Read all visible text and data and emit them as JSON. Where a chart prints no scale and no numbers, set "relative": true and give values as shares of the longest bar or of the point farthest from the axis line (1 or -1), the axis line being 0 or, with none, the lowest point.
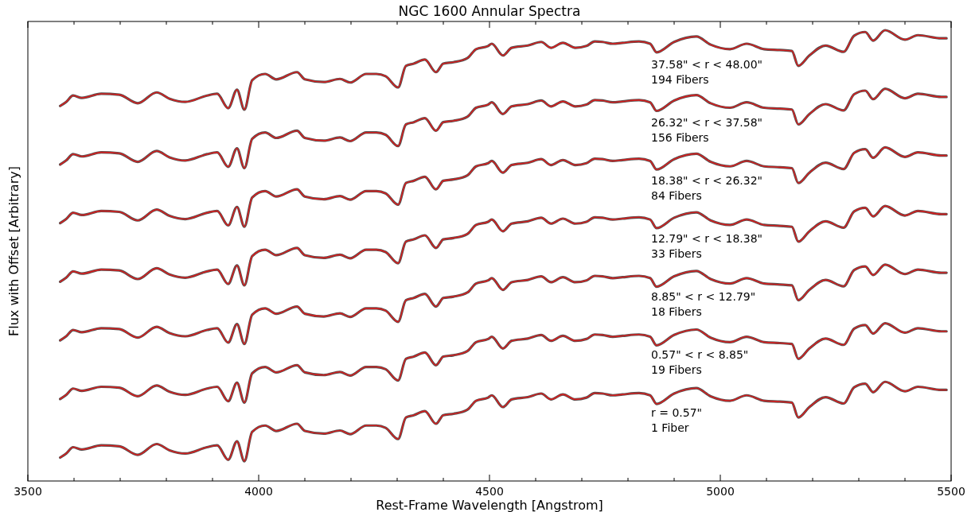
{
  "chart_data": {
    "type": "line",
    "title": "NGC 1600 Annular Spectra",
    "xlabel": "Rest-Frame Wavelength [Angstrom]",
    "ylabel": "Flux with Offset [Arbitrary]",
    "relative": true,
    "xlim": [
      3500,
      5500
    ],
    "xticks": [
      3500,
      {
        "value": 3600,
        "label": null
      },
      {
        "value": 3700,
        "label": null
      },
      {
        "value": 3800,
        "label": null
      },
      {
        "value": 3900,
        "label": null
      },
      4000,
      {
        "value": 4100,
        "label": null
      },
      {
        "value": 4200,
        "label": null
      },
      {
        "value": 4300,
        "label": null
      },
      {
        "value": 4400,
        "label": null
      },
      4500,
      {
        "value": 4600,
        "label": null
      },
      {
        "value": 4700,
        "label": null
      },
      {
        "value": 4800,
        "label": null
      },
      {
        "value": 4900,
        "label": null
      },
      5000,
      {
        "value": 5100,
        "label": null
      },
      {
        "value": 5200,
        "label": null
      },
      {
        "value": 5300,
        "label": null
      },
      {
        "value": 5400,
        "label": null
      },
      5500
    ],
    "x": [
      3570,
      3583,
      3598,
      3617,
      3659,
      3698,
      3738,
      3779,
      3807,
      3841,
      3888,
      3910,
      3934,
      3953,
      3969,
      3986,
      4014,
      4038,
      4083,
      4100,
      4141,
      4176,
      4198,
      4233,
      4255,
      4275,
      4302,
      4319,
      4336,
      4360,
      4384,
      4400,
      4422,
      4452,
      4471,
      4497,
      4505,
      4529,
      4548,
      4583,
      4612,
      4633,
      4659,
      4686,
      4710,
      4728,
      4745,
      4767,
      4788,
      4824,
      4848,
      4862,
      4900,
      4948,
      4979,
      5021,
      5057,
      5095,
      5129,
      5155,
      5169,
      5193,
      5228,
      5267,
      5290,
      5314,
      5331,
      5357,
      5400,
      5428,
      5479,
      5490
    ],
    "series": [
      {
        "type": "line",
        "color": "#505050",
        "values": [
          0.832,
          0.841,
          0.855,
          0.85,
          0.859,
          0.857,
          0.838,
          0.862,
          0.848,
          0.841,
          0.855,
          0.859,
          0.827,
          0.868,
          0.824,
          0.889,
          0.903,
          0.891,
          0.907,
          0.891,
          0.885,
          0.892,
          0.884,
          0.903,
          0.903,
          0.898,
          0.873,
          0.921,
          0.926,
          0.935,
          0.907,
          0.926,
          0.929,
          0.938,
          0.958,
          0.965,
          0.97,
          0.944,
          0.961,
          0.966,
          0.974,
          0.961,
          0.972,
          0.961,
          0.965,
          0.975,
          0.974,
          0.97,
          0.972,
          0.975,
          0.97,
          0.951,
          0.974,
          0.986,
          0.968,
          0.958,
          0.97,
          0.958,
          0.956,
          0.954,
          0.921,
          0.944,
          0.966,
          0.952,
          0.988,
          0.996,
          0.977,
          1.0,
          0.979,
          0.989,
          0.982,
          0.982
        ]
      },
      {
        "type": "line",
        "color": "#d62020",
        "values": [
          0.832,
          0.841,
          0.855,
          0.85,
          0.859,
          0.857,
          0.838,
          0.862,
          0.848,
          0.841,
          0.855,
          0.859,
          0.827,
          0.868,
          0.824,
          0.889,
          0.903,
          0.891,
          0.907,
          0.891,
          0.885,
          0.892,
          0.884,
          0.903,
          0.903,
          0.898,
          0.873,
          0.921,
          0.926,
          0.935,
          0.907,
          0.926,
          0.929,
          0.938,
          0.958,
          0.965,
          0.97,
          0.944,
          0.961,
          0.966,
          0.974,
          0.961,
          0.972,
          0.961,
          0.965,
          0.975,
          0.974,
          0.97,
          0.972,
          0.975,
          0.97,
          0.951,
          0.974,
          0.986,
          0.968,
          0.958,
          0.97,
          0.958,
          0.956,
          0.954,
          0.921,
          0.944,
          0.966,
          0.952,
          0.988,
          0.996,
          0.977,
          1.0,
          0.979,
          0.989,
          0.982,
          0.982
        ]
      },
      {
        "type": "line",
        "color": "#505050",
        "values": [
          0.702,
          0.711,
          0.725,
          0.72,
          0.729,
          0.727,
          0.708,
          0.732,
          0.718,
          0.711,
          0.725,
          0.729,
          0.697,
          0.738,
          0.694,
          0.759,
          0.773,
          0.761,
          0.777,
          0.761,
          0.755,
          0.762,
          0.754,
          0.773,
          0.773,
          0.768,
          0.743,
          0.791,
          0.796,
          0.805,
          0.777,
          0.796,
          0.799,
          0.808,
          0.828,
          0.835,
          0.84,
          0.814,
          0.831,
          0.836,
          0.844,
          0.831,
          0.842,
          0.831,
          0.835,
          0.845,
          0.844,
          0.84,
          0.842,
          0.845,
          0.84,
          0.821,
          0.844,
          0.856,
          0.838,
          0.828,
          0.84,
          0.828,
          0.826,
          0.824,
          0.791,
          0.814,
          0.836,
          0.822,
          0.858,
          0.866,
          0.847,
          0.87,
          0.849,
          0.859,
          0.852,
          0.852
        ]
      },
      {
        "type": "line",
        "color": "#d62020",
        "values": [
          0.702,
          0.711,
          0.725,
          0.72,
          0.729,
          0.727,
          0.708,
          0.732,
          0.718,
          0.711,
          0.725,
          0.729,
          0.697,
          0.738,
          0.694,
          0.759,
          0.773,
          0.761,
          0.777,
          0.761,
          0.755,
          0.762,
          0.754,
          0.773,
          0.773,
          0.768,
          0.743,
          0.791,
          0.796,
          0.805,
          0.777,
          0.796,
          0.799,
          0.808,
          0.828,
          0.835,
          0.84,
          0.814,
          0.831,
          0.836,
          0.844,
          0.831,
          0.842,
          0.831,
          0.835,
          0.845,
          0.844,
          0.84,
          0.842,
          0.845,
          0.84,
          0.821,
          0.844,
          0.856,
          0.838,
          0.828,
          0.84,
          0.828,
          0.826,
          0.824,
          0.791,
          0.814,
          0.836,
          0.822,
          0.858,
          0.866,
          0.847,
          0.87,
          0.849,
          0.859,
          0.852,
          0.852
        ]
      },
      {
        "type": "line",
        "color": "#505050",
        "values": [
          0.572,
          0.581,
          0.595,
          0.59,
          0.599,
          0.597,
          0.578,
          0.602,
          0.588,
          0.581,
          0.595,
          0.599,
          0.567,
          0.608,
          0.564,
          0.629,
          0.643,
          0.631,
          0.647,
          0.631,
          0.625,
          0.632,
          0.624,
          0.643,
          0.643,
          0.638,
          0.613,
          0.661,
          0.666,
          0.675,
          0.647,
          0.666,
          0.669,
          0.678,
          0.698,
          0.705,
          0.71,
          0.684,
          0.701,
          0.706,
          0.714,
          0.701,
          0.712,
          0.701,
          0.705,
          0.715,
          0.714,
          0.71,
          0.712,
          0.715,
          0.71,
          0.691,
          0.714,
          0.726,
          0.708,
          0.698,
          0.71,
          0.698,
          0.696,
          0.694,
          0.661,
          0.684,
          0.706,
          0.692,
          0.728,
          0.736,
          0.717,
          0.74,
          0.719,
          0.729,
          0.722,
          0.722
        ]
      },
      {
        "type": "line",
        "color": "#d62020",
        "values": [
          0.572,
          0.581,
          0.595,
          0.59,
          0.599,
          0.597,
          0.578,
          0.602,
          0.588,
          0.581,
          0.595,
          0.599,
          0.567,
          0.608,
          0.564,
          0.629,
          0.643,
          0.631,
          0.647,
          0.631,
          0.625,
          0.632,
          0.624,
          0.643,
          0.643,
          0.638,
          0.613,
          0.661,
          0.666,
          0.675,
          0.647,
          0.666,
          0.669,
          0.678,
          0.698,
          0.705,
          0.71,
          0.684,
          0.701,
          0.706,
          0.714,
          0.701,
          0.712,
          0.701,
          0.705,
          0.715,
          0.714,
          0.71,
          0.712,
          0.715,
          0.71,
          0.691,
          0.714,
          0.726,
          0.708,
          0.698,
          0.71,
          0.698,
          0.696,
          0.694,
          0.661,
          0.684,
          0.706,
          0.692,
          0.728,
          0.736,
          0.717,
          0.74,
          0.719,
          0.729,
          0.722,
          0.722
        ]
      },
      {
        "type": "line",
        "color": "#505050",
        "values": [
          0.442,
          0.451,
          0.465,
          0.46,
          0.469,
          0.467,
          0.448,
          0.472,
          0.458,
          0.451,
          0.465,
          0.469,
          0.437,
          0.478,
          0.434,
          0.499,
          0.513,
          0.501,
          0.517,
          0.501,
          0.495,
          0.502,
          0.494,
          0.513,
          0.513,
          0.508,
          0.483,
          0.531,
          0.536,
          0.545,
          0.517,
          0.536,
          0.539,
          0.548,
          0.568,
          0.575,
          0.58,
          0.554,
          0.571,
          0.576,
          0.584,
          0.571,
          0.582,
          0.571,
          0.575,
          0.585,
          0.584,
          0.58,
          0.582,
          0.585,
          0.58,
          0.561,
          0.584,
          0.596,
          0.578,
          0.568,
          0.58,
          0.568,
          0.566,
          0.564,
          0.531,
          0.554,
          0.576,
          0.562,
          0.598,
          0.606,
          0.587,
          0.61,
          0.589,
          0.599,
          0.592,
          0.592
        ]
      },
      {
        "type": "line",
        "color": "#d62020",
        "values": [
          0.442,
          0.451,
          0.465,
          0.46,
          0.469,
          0.467,
          0.448,
          0.472,
          0.458,
          0.451,
          0.465,
          0.469,
          0.437,
          0.478,
          0.434,
          0.499,
          0.513,
          0.501,
          0.517,
          0.501,
          0.495,
          0.502,
          0.494,
          0.513,
          0.513,
          0.508,
          0.483,
          0.531,
          0.536,
          0.545,
          0.517,
          0.536,
          0.539,
          0.548,
          0.568,
          0.575,
          0.58,
          0.554,
          0.571,
          0.576,
          0.584,
          0.571,
          0.582,
          0.571,
          0.575,
          0.585,
          0.584,
          0.58,
          0.582,
          0.585,
          0.58,
          0.561,
          0.584,
          0.596,
          0.578,
          0.568,
          0.58,
          0.568,
          0.566,
          0.564,
          0.531,
          0.554,
          0.576,
          0.562,
          0.598,
          0.606,
          0.587,
          0.61,
          0.589,
          0.599,
          0.592,
          0.592
        ]
      },
      {
        "type": "line",
        "color": "#505050",
        "values": [
          0.312,
          0.321,
          0.335,
          0.33,
          0.339,
          0.337,
          0.318,
          0.342,
          0.328,
          0.321,
          0.335,
          0.339,
          0.307,
          0.348,
          0.304,
          0.369,
          0.383,
          0.371,
          0.387,
          0.371,
          0.365,
          0.372,
          0.364,
          0.383,
          0.383,
          0.378,
          0.353,
          0.401,
          0.406,
          0.415,
          0.387,
          0.406,
          0.409,
          0.418,
          0.438,
          0.445,
          0.45,
          0.424,
          0.441,
          0.446,
          0.454,
          0.441,
          0.452,
          0.441,
          0.445,
          0.455,
          0.454,
          0.45,
          0.452,
          0.455,
          0.45,
          0.431,
          0.454,
          0.466,
          0.448,
          0.438,
          0.45,
          0.438,
          0.436,
          0.434,
          0.401,
          0.424,
          0.446,
          0.432,
          0.468,
          0.476,
          0.457,
          0.48,
          0.459,
          0.469,
          0.462,
          0.462
        ]
      },
      {
        "type": "line",
        "color": "#d62020",
        "values": [
          0.312,
          0.321,
          0.335,
          0.33,
          0.339,
          0.337,
          0.318,
          0.342,
          0.328,
          0.321,
          0.335,
          0.339,
          0.307,
          0.348,
          0.304,
          0.369,
          0.383,
          0.371,
          0.387,
          0.371,
          0.365,
          0.372,
          0.364,
          0.383,
          0.383,
          0.378,
          0.353,
          0.401,
          0.406,
          0.415,
          0.387,
          0.406,
          0.409,
          0.418,
          0.438,
          0.445,
          0.45,
          0.424,
          0.441,
          0.446,
          0.454,
          0.441,
          0.452,
          0.441,
          0.445,
          0.455,
          0.454,
          0.45,
          0.452,
          0.455,
          0.45,
          0.431,
          0.454,
          0.466,
          0.448,
          0.438,
          0.45,
          0.438,
          0.436,
          0.434,
          0.401,
          0.424,
          0.446,
          0.432,
          0.468,
          0.476,
          0.457,
          0.48,
          0.459,
          0.469,
          0.462,
          0.462
        ]
      },
      {
        "type": "line",
        "color": "#505050",
        "values": [
          0.182,
          0.191,
          0.205,
          0.2,
          0.209,
          0.207,
          0.188,
          0.212,
          0.198,
          0.191,
          0.205,
          0.209,
          0.177,
          0.218,
          0.174,
          0.239,
          0.253,
          0.241,
          0.257,
          0.241,
          0.235,
          0.242,
          0.234,
          0.253,
          0.253,
          0.248,
          0.223,
          0.271,
          0.276,
          0.285,
          0.257,
          0.276,
          0.279,
          0.288,
          0.308,
          0.315,
          0.32,
          0.294,
          0.311,
          0.316,
          0.324,
          0.311,
          0.322,
          0.311,
          0.315,
          0.325,
          0.324,
          0.32,
          0.322,
          0.325,
          0.32,
          0.301,
          0.324,
          0.336,
          0.318,
          0.308,
          0.32,
          0.308,
          0.306,
          0.304,
          0.271,
          0.294,
          0.316,
          0.302,
          0.338,
          0.346,
          0.327,
          0.35,
          0.329,
          0.339,
          0.332,
          0.332
        ]
      },
      {
        "type": "line",
        "color": "#d62020",
        "values": [
          0.182,
          0.191,
          0.205,
          0.2,
          0.209,
          0.207,
          0.188,
          0.212,
          0.198,
          0.191,
          0.205,
          0.209,
          0.177,
          0.218,
          0.174,
          0.239,
          0.253,
          0.241,
          0.257,
          0.241,
          0.235,
          0.242,
          0.234,
          0.253,
          0.253,
          0.248,
          0.223,
          0.271,
          0.276,
          0.285,
          0.257,
          0.276,
          0.279,
          0.288,
          0.308,
          0.315,
          0.32,
          0.294,
          0.311,
          0.316,
          0.324,
          0.311,
          0.322,
          0.311,
          0.315,
          0.325,
          0.324,
          0.32,
          0.322,
          0.325,
          0.32,
          0.301,
          0.324,
          0.336,
          0.318,
          0.308,
          0.32,
          0.308,
          0.306,
          0.304,
          0.271,
          0.294,
          0.316,
          0.302,
          0.338,
          0.346,
          0.327,
          0.35,
          0.329,
          0.339,
          0.332,
          0.332
        ]
      },
      {
        "type": "line",
        "color": "#505050",
        "values": [
          0.052,
          0.061,
          0.075,
          0.07,
          0.079,
          0.077,
          0.058,
          0.082,
          0.068,
          0.061,
          0.075,
          0.079,
          0.047,
          0.088,
          0.044,
          0.109,
          0.123,
          0.111,
          0.127,
          0.111,
          0.105,
          0.112,
          0.104,
          0.123,
          0.123,
          0.118,
          0.093,
          0.141,
          0.146,
          0.155,
          0.127,
          0.146,
          0.149,
          0.158,
          0.178,
          0.185,
          0.19,
          0.164,
          0.181,
          0.186,
          0.194,
          0.181,
          0.192,
          0.181,
          0.185,
          0.195,
          0.194,
          0.19,
          0.192,
          0.195,
          0.19,
          0.171,
          0.194,
          0.206,
          0.188,
          0.178,
          0.19,
          0.178,
          0.176,
          0.174,
          0.141,
          0.164,
          0.186,
          0.172,
          0.208,
          0.216,
          0.197,
          0.22,
          0.199,
          0.209,
          0.202,
          0.202
        ]
      },
      {
        "type": "line",
        "color": "#d62020",
        "values": [
          0.052,
          0.061,
          0.075,
          0.07,
          0.079,
          0.077,
          0.058,
          0.082,
          0.068,
          0.061,
          0.075,
          0.079,
          0.047,
          0.088,
          0.044,
          0.109,
          0.123,
          0.111,
          0.127,
          0.111,
          0.105,
          0.112,
          0.104,
          0.123,
          0.123,
          0.118,
          0.093,
          0.141,
          0.146,
          0.155,
          0.127,
          0.146,
          0.149,
          0.158,
          0.178,
          0.185,
          0.19,
          0.164,
          0.181,
          0.186,
          0.194,
          0.181,
          0.192,
          0.181,
          0.185,
          0.195,
          0.194,
          0.19,
          0.192,
          0.195,
          0.19,
          0.171,
          0.194,
          0.206,
          0.188,
          0.178,
          0.19,
          0.178,
          0.176,
          0.174,
          0.141,
          0.164,
          0.186,
          0.172,
          0.208,
          0.216,
          0.197,
          0.22,
          0.199,
          0.209,
          0.202,
          0.202
        ]
      }
    ],
    "annotations": [
      "37.58\" < r < 48.00\"\n194 Fibers",
      "26.32\" < r < 37.58\"\n156 Fibers",
      "18.38\" < r < 26.32\"\n84 Fibers",
      "12.79\" < r < 18.38\"\n33 Fibers",
      "8.85\" < r < 12.79\"\n18 Fibers",
      "0.57\" < r < 8.85\"\n19 Fibers",
      "r = 0.57\"\n1 Fiber"
    ]
  }
}
